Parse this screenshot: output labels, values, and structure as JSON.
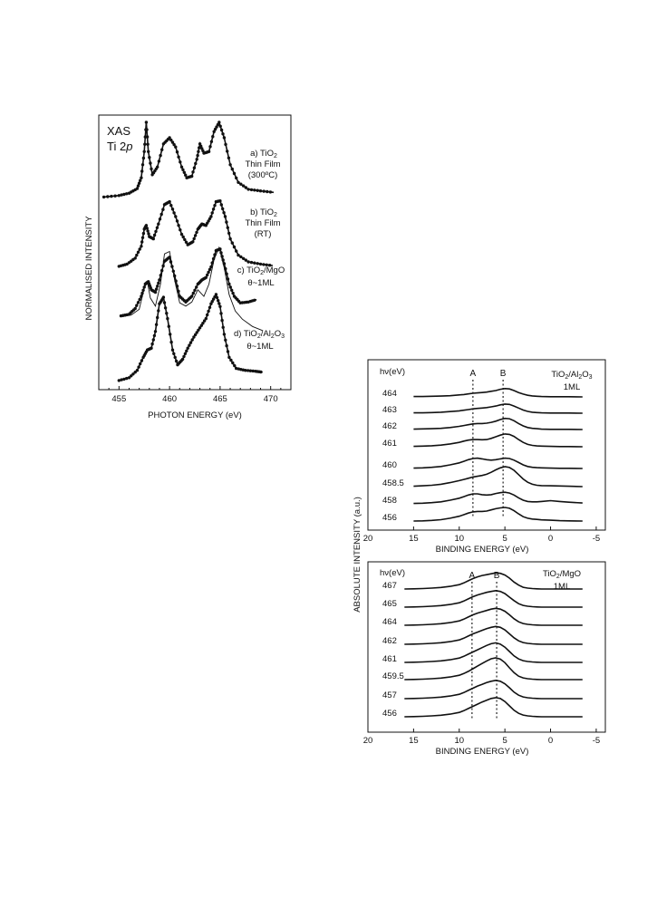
{
  "chart_data": [
    {
      "type": "line",
      "title_lines": [
        "XAS",
        "Ti 2p"
      ],
      "xlabel": "PHOTON ENERGY (eV)",
      "ylabel": "NORMALISED INTENSITY",
      "xlim": [
        453,
        472
      ],
      "xticks": [
        "455",
        "460",
        "465",
        "470"
      ],
      "series": [
        {
          "label_lines": [
            "a) TiO₂",
            "Thin Film",
            "(300ºC)"
          ],
          "x": [
            453.5,
            455,
            456,
            456.8,
            457.2,
            457.5,
            457.7,
            457.9,
            458.3,
            458.8,
            459.4,
            460,
            460.6,
            461.2,
            461.7,
            462.2,
            462.7,
            463.0,
            463.4,
            463.9,
            464.4,
            464.9,
            465.4,
            466,
            466.8,
            467.8,
            469,
            470.3
          ],
          "y": [
            0.03,
            0.05,
            0.08,
            0.14,
            0.28,
            0.62,
            1.0,
            0.62,
            0.32,
            0.42,
            0.72,
            0.8,
            0.68,
            0.42,
            0.28,
            0.3,
            0.52,
            0.72,
            0.6,
            0.62,
            0.88,
            1.0,
            0.8,
            0.45,
            0.22,
            0.13,
            0.11,
            0.09
          ]
        },
        {
          "label_lines": [
            "b) TiO₂",
            "Thin Film",
            "(RT)"
          ],
          "x": [
            455,
            455.8,
            456.6,
            457.2,
            457.5,
            457.7,
            458.0,
            458.4,
            458.9,
            459.5,
            460.0,
            460.6,
            461.2,
            461.8,
            462.3,
            462.8,
            463.2,
            463.6,
            464.1,
            464.6,
            465.0,
            465.5,
            466.0,
            466.8,
            467.8,
            469,
            470.2
          ],
          "y": [
            0.05,
            0.08,
            0.16,
            0.32,
            0.55,
            0.6,
            0.45,
            0.42,
            0.62,
            0.88,
            0.92,
            0.72,
            0.48,
            0.34,
            0.38,
            0.55,
            0.62,
            0.6,
            0.72,
            0.92,
            0.93,
            0.72,
            0.42,
            0.2,
            0.11,
            0.08,
            0.06
          ]
        },
        {
          "label_lines": [
            "c) TiO₂/MgO",
            "θ~1ML"
          ],
          "x": [
            455.2,
            456,
            456.6,
            457.2,
            457.6,
            457.9,
            458.2,
            458.6,
            459.0,
            459.5,
            460.0,
            460.5,
            461.0,
            461.6,
            462.2,
            462.8,
            463.2,
            463.6,
            464.1,
            464.6,
            465.0,
            465.4,
            465.9,
            466.4,
            467.0,
            467.8,
            468.6
          ],
          "y": [
            0.16,
            0.18,
            0.25,
            0.4,
            0.55,
            0.58,
            0.48,
            0.45,
            0.6,
            0.83,
            0.88,
            0.65,
            0.4,
            0.33,
            0.4,
            0.55,
            0.6,
            0.63,
            0.76,
            0.96,
            0.98,
            0.8,
            0.55,
            0.4,
            0.32,
            0.33,
            0.36
          ]
        },
        {
          "label_lines": [
            "d) TiO₂/Al₂O₃",
            "θ~1ML"
          ],
          "x": [
            455.0,
            456,
            456.8,
            457.4,
            457.8,
            458.2,
            458.6,
            459.0,
            459.4,
            459.8,
            460.3,
            460.8,
            461.3,
            461.8,
            462.4,
            463.0,
            463.6,
            464.1,
            464.6,
            465.0,
            465.4,
            465.9,
            466.6,
            467.5,
            468.5,
            469.2
          ],
          "y": [
            0.05,
            0.08,
            0.16,
            0.3,
            0.38,
            0.4,
            0.58,
            0.88,
            0.95,
            0.72,
            0.38,
            0.22,
            0.28,
            0.4,
            0.52,
            0.62,
            0.72,
            0.88,
            0.98,
            0.85,
            0.55,
            0.3,
            0.18,
            0.16,
            0.15,
            0.14
          ]
        }
      ],
      "fit": {
        "x": [
          455.3,
          456.2,
          457.0,
          457.5,
          457.8,
          458.1,
          458.6,
          459.1,
          459.5,
          460.0,
          460.5,
          461.0,
          461.6,
          462.2,
          462.8,
          463.4,
          463.9,
          464.4,
          464.9,
          465.4,
          465.9,
          466.5,
          467.2,
          468.2,
          469.2
        ],
        "y": [
          0.15,
          0.17,
          0.24,
          0.5,
          0.58,
          0.38,
          0.28,
          0.55,
          0.92,
          0.95,
          0.6,
          0.32,
          0.28,
          0.33,
          0.48,
          0.4,
          0.55,
          0.85,
          1.0,
          0.75,
          0.42,
          0.22,
          0.12,
          0.03,
          -0.02
        ]
      }
    },
    {
      "type": "line",
      "corner_label_lines": [
        "TiO₂/Al₂O₃",
        "1ML"
      ],
      "hv_header": "hν(eV)",
      "xlabel": "BINDING ENERGY (eV)",
      "xlim": [
        20,
        -6
      ],
      "xticks": [
        "20",
        "15",
        "10",
        "5",
        "0",
        "-5"
      ],
      "markers": [
        "A",
        "B"
      ],
      "marker_x": [
        8.5,
        5.2
      ],
      "x": [
        15,
        14,
        13,
        12,
        11,
        10,
        9.5,
        9,
        8.5,
        8,
        7.5,
        7,
        6.5,
        6,
        5.5,
        5,
        4.5,
        4,
        3.5,
        3,
        2.5,
        2,
        1.5,
        1,
        0,
        -1,
        -2,
        -3.5
      ],
      "traces": [
        {
          "hv": "464",
          "y": [
            0.02,
            0.02,
            0.03,
            0.04,
            0.06,
            0.1,
            0.12,
            0.15,
            0.18,
            0.2,
            0.22,
            0.24,
            0.28,
            0.32,
            0.38,
            0.42,
            0.4,
            0.32,
            0.22,
            0.14,
            0.08,
            0.05,
            0.03,
            0.02,
            0.01,
            0.01,
            0.01,
            0.0
          ]
        },
        {
          "hv": "463",
          "y": [
            0.02,
            0.02,
            0.03,
            0.05,
            0.08,
            0.12,
            0.15,
            0.18,
            0.22,
            0.24,
            0.26,
            0.28,
            0.32,
            0.36,
            0.42,
            0.46,
            0.44,
            0.36,
            0.26,
            0.16,
            0.09,
            0.05,
            0.03,
            0.02,
            0.01,
            0.01,
            0.01,
            0.0
          ]
        },
        {
          "hv": "462",
          "y": [
            0.02,
            0.03,
            0.04,
            0.06,
            0.1,
            0.16,
            0.2,
            0.24,
            0.28,
            0.3,
            0.3,
            0.32,
            0.36,
            0.42,
            0.5,
            0.56,
            0.54,
            0.44,
            0.3,
            0.18,
            0.1,
            0.06,
            0.04,
            0.02,
            0.01,
            0.01,
            0.01,
            0.0
          ]
        },
        {
          "hv": "461",
          "y": [
            0.02,
            0.03,
            0.05,
            0.08,
            0.14,
            0.22,
            0.28,
            0.33,
            0.36,
            0.36,
            0.35,
            0.36,
            0.42,
            0.5,
            0.58,
            0.64,
            0.62,
            0.52,
            0.36,
            0.22,
            0.12,
            0.07,
            0.04,
            0.03,
            0.02,
            0.01,
            0.01,
            0.0
          ]
        },
        {
          "hv": "460",
          "y": [
            0.02,
            0.03,
            0.06,
            0.1,
            0.18,
            0.28,
            0.36,
            0.44,
            0.5,
            0.52,
            0.48,
            0.44,
            0.42,
            0.44,
            0.48,
            0.52,
            0.5,
            0.42,
            0.3,
            0.18,
            0.1,
            0.06,
            0.04,
            0.03,
            0.02,
            0.01,
            0.01,
            0.0
          ]
        },
        {
          "hv": "458.5",
          "y": [
            0.02,
            0.04,
            0.07,
            0.12,
            0.2,
            0.3,
            0.36,
            0.42,
            0.48,
            0.52,
            0.56,
            0.62,
            0.72,
            0.84,
            0.94,
            1.0,
            0.96,
            0.82,
            0.6,
            0.38,
            0.22,
            0.12,
            0.07,
            0.05,
            0.04,
            0.03,
            0.02,
            0.0
          ]
        },
        {
          "hv": "458",
          "y": [
            0.02,
            0.03,
            0.06,
            0.1,
            0.18,
            0.28,
            0.36,
            0.44,
            0.5,
            0.5,
            0.46,
            0.44,
            0.46,
            0.52,
            0.56,
            0.58,
            0.54,
            0.44,
            0.3,
            0.18,
            0.12,
            0.1,
            0.1,
            0.12,
            0.16,
            0.12,
            0.08,
            0.04
          ]
        },
        {
          "hv": "456",
          "y": [
            0.0,
            0.01,
            0.03,
            0.07,
            0.14,
            0.24,
            0.32,
            0.4,
            0.46,
            0.48,
            0.48,
            0.5,
            0.56,
            0.62,
            0.66,
            0.68,
            0.64,
            0.52,
            0.36,
            0.22,
            0.14,
            0.1,
            0.08,
            0.06,
            0.04,
            0.02,
            0.01,
            0.0
          ]
        }
      ]
    },
    {
      "type": "line",
      "corner_label_lines": [
        "TiO₂/MgO",
        "1ML"
      ],
      "hv_header": "hν(eV)",
      "xlabel": "BINDING ENERGY (eV)",
      "ylabel": "ABSOLUTE INTENSITY (a.u.)",
      "xlim": [
        20,
        -6
      ],
      "xticks": [
        "20",
        "15",
        "10",
        "5",
        "0",
        "-5"
      ],
      "markers": [
        "A",
        "B"
      ],
      "marker_x": [
        8.6,
        5.9
      ],
      "x": [
        16,
        15,
        14,
        13,
        12,
        11,
        10,
        9.5,
        9,
        8.5,
        8,
        7.5,
        7,
        6.5,
        6,
        5.5,
        5,
        4.5,
        4,
        3.5,
        3,
        2.5,
        2,
        1.5,
        1,
        0,
        -1,
        -2,
        -3.5
      ],
      "traces": [
        {
          "hv": "467",
          "y": [
            0.0,
            0.01,
            0.02,
            0.04,
            0.07,
            0.12,
            0.2,
            0.28,
            0.38,
            0.48,
            0.56,
            0.62,
            0.66,
            0.7,
            0.74,
            0.72,
            0.64,
            0.5,
            0.32,
            0.18,
            0.08,
            0.04,
            0.02,
            0.01,
            0.0,
            0.0,
            0.0,
            0.0,
            0.0
          ]
        },
        {
          "hv": "465",
          "y": [
            0.0,
            0.01,
            0.02,
            0.04,
            0.07,
            0.12,
            0.2,
            0.28,
            0.38,
            0.48,
            0.56,
            0.62,
            0.68,
            0.72,
            0.76,
            0.72,
            0.62,
            0.46,
            0.3,
            0.16,
            0.08,
            0.04,
            0.02,
            0.01,
            0.0,
            0.0,
            0.0,
            0.0,
            0.0
          ]
        },
        {
          "hv": "464",
          "y": [
            0.0,
            0.01,
            0.02,
            0.04,
            0.07,
            0.12,
            0.2,
            0.28,
            0.38,
            0.48,
            0.56,
            0.62,
            0.68,
            0.74,
            0.78,
            0.74,
            0.64,
            0.48,
            0.3,
            0.16,
            0.08,
            0.04,
            0.02,
            0.01,
            0.0,
            0.0,
            0.0,
            0.0,
            0.0
          ]
        },
        {
          "hv": "462",
          "y": [
            0.0,
            0.01,
            0.02,
            0.04,
            0.07,
            0.12,
            0.2,
            0.28,
            0.38,
            0.48,
            0.56,
            0.64,
            0.72,
            0.78,
            0.82,
            0.78,
            0.66,
            0.48,
            0.3,
            0.16,
            0.08,
            0.04,
            0.02,
            0.01,
            0.0,
            0.0,
            0.0,
            0.0,
            0.0
          ]
        },
        {
          "hv": "461",
          "y": [
            0.0,
            0.01,
            0.02,
            0.04,
            0.07,
            0.12,
            0.2,
            0.28,
            0.38,
            0.48,
            0.58,
            0.68,
            0.78,
            0.86,
            0.9,
            0.84,
            0.7,
            0.5,
            0.3,
            0.16,
            0.08,
            0.04,
            0.02,
            0.01,
            0.0,
            0.0,
            0.0,
            0.0,
            0.0
          ]
        },
        {
          "hv": "459.5",
          "y": [
            0.0,
            0.01,
            0.02,
            0.04,
            0.07,
            0.12,
            0.2,
            0.28,
            0.38,
            0.5,
            0.62,
            0.74,
            0.86,
            0.96,
            1.0,
            0.94,
            0.78,
            0.54,
            0.32,
            0.16,
            0.08,
            0.04,
            0.02,
            0.01,
            0.0,
            0.0,
            0.0,
            0.0,
            0.0
          ]
        },
        {
          "hv": "457",
          "y": [
            0.0,
            0.01,
            0.02,
            0.04,
            0.07,
            0.12,
            0.2,
            0.28,
            0.38,
            0.48,
            0.58,
            0.66,
            0.74,
            0.8,
            0.84,
            0.8,
            0.68,
            0.5,
            0.3,
            0.16,
            0.08,
            0.04,
            0.02,
            0.01,
            0.0,
            0.0,
            0.0,
            0.0,
            0.0
          ]
        },
        {
          "hv": "456",
          "y": [
            0.0,
            0.01,
            0.02,
            0.04,
            0.07,
            0.12,
            0.2,
            0.28,
            0.38,
            0.48,
            0.58,
            0.68,
            0.76,
            0.84,
            0.88,
            0.84,
            0.7,
            0.5,
            0.3,
            0.16,
            0.08,
            0.04,
            0.02,
            0.01,
            0.0,
            0.0,
            0.0,
            0.0,
            0.0
          ]
        }
      ]
    }
  ]
}
